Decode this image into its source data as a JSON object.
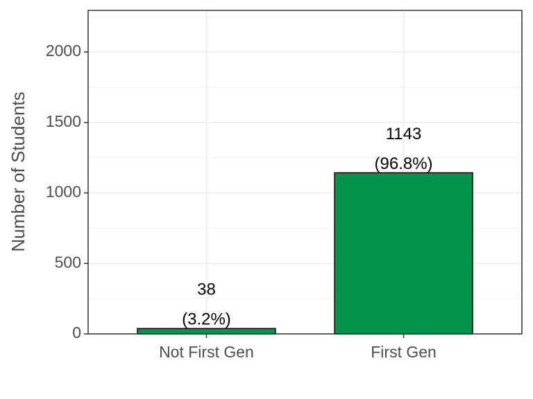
{
  "chart_data": {
    "type": "bar",
    "y_label": "Number of Students",
    "categories": [
      "Not First Gen",
      "First Gen"
    ],
    "values": [
      38,
      1143
    ],
    "percent_labels": [
      "(3.2%)",
      "(96.8%)"
    ],
    "color": "#03934a",
    "ylim": [
      0,
      2295
    ],
    "yticks": [
      0,
      500,
      1000,
      1500,
      2000
    ],
    "minor_yticks": [
      250,
      750,
      1250,
      1750,
      2250
    ],
    "grid": true
  }
}
